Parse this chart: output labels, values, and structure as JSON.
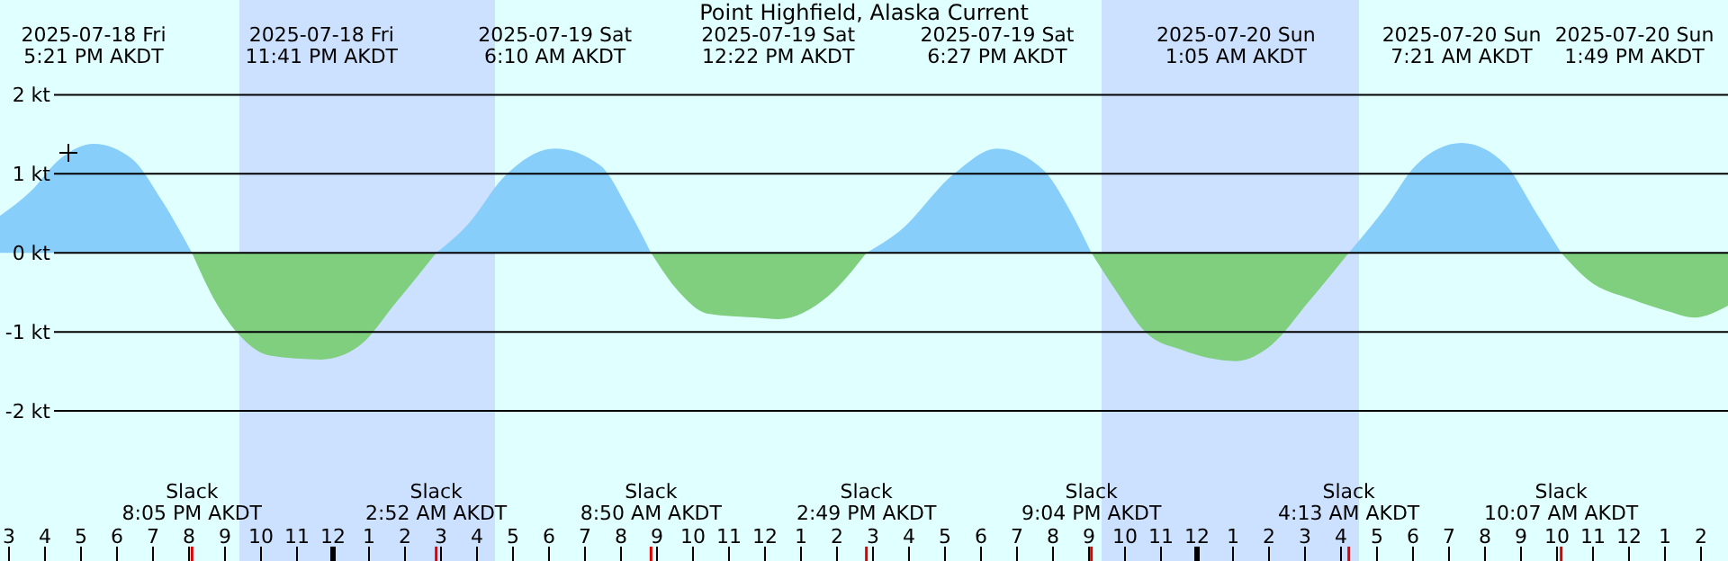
{
  "chart_data": {
    "type": "area",
    "title": "Point Highfield, Alaska Current",
    "x": [
      "2025-07-18T14:45",
      "2025-07-18T15:35",
      "2025-07-18T16:25",
      "2025-07-18T17:21",
      "2025-07-18T18:25",
      "2025-07-18T19:15",
      "2025-07-18T20:05",
      "2025-07-18T20:45",
      "2025-07-18T21:25",
      "2025-07-18T22:15",
      "2025-07-18T23:41",
      "2025-07-19T00:45",
      "2025-07-19T01:45",
      "2025-07-19T02:52",
      "2025-07-19T03:45",
      "2025-07-19T04:45",
      "2025-07-19T06:10",
      "2025-07-19T07:25",
      "2025-07-19T08:15",
      "2025-07-19T08:50",
      "2025-07-19T09:35",
      "2025-07-19T10:25",
      "2025-07-19T11:45",
      "2025-07-19T12:22",
      "2025-07-19T13:45",
      "2025-07-19T14:49",
      "2025-07-19T15:45",
      "2025-07-19T17:15",
      "2025-07-19T18:27",
      "2025-07-19T19:45",
      "2025-07-19T20:25",
      "2025-07-19T21:04",
      "2025-07-19T21:45",
      "2025-07-19T22:35",
      "2025-07-19T23:35",
      "2025-07-20T01:05",
      "2025-07-20T02:05",
      "2025-07-20T03:05",
      "2025-07-20T04:13",
      "2025-07-20T05:15",
      "2025-07-20T06:05",
      "2025-07-20T07:21",
      "2025-07-20T08:35",
      "2025-07-20T09:25",
      "2025-07-20T10:07",
      "2025-07-20T10:55",
      "2025-07-20T12:05",
      "2025-07-20T13:05",
      "2025-07-20T13:49",
      "2025-07-20T14:45"
    ],
    "series": [
      {
        "color": "#87cefa",
        "values": [
          0.47,
          0.77,
          1.19,
          1.38,
          1.19,
          0.66,
          0,
          null,
          null,
          null,
          null,
          null,
          null,
          0,
          0.36,
          0.96,
          1.32,
          1.11,
          0.51,
          0,
          null,
          null,
          null,
          null,
          null,
          0,
          0.28,
          1.0,
          1.32,
          1.04,
          0.58,
          0,
          null,
          null,
          null,
          null,
          null,
          null,
          0,
          0.58,
          1.11,
          1.39,
          1.11,
          0.51,
          0,
          null,
          null,
          null,
          null,
          null
        ]
      },
      {
        "color": "#7fcf7f",
        "values": [
          null,
          null,
          null,
          null,
          null,
          null,
          0,
          -0.63,
          -1.05,
          -1.3,
          -1.35,
          -1.17,
          -0.63,
          0,
          null,
          null,
          null,
          null,
          null,
          0,
          -0.48,
          -0.77,
          -0.82,
          -0.84,
          -0.55,
          0,
          null,
          null,
          null,
          null,
          null,
          0,
          -0.48,
          -1.01,
          -1.23,
          -1.37,
          -1.16,
          -0.63,
          0,
          null,
          null,
          null,
          null,
          null,
          0,
          -0.36,
          -0.59,
          -0.74,
          -0.82,
          -0.67
        ]
      }
    ],
    "xlim": [
      "2025-07-18T14:45",
      "2025-07-20T14:45"
    ],
    "xticks": [
      {
        "value": "2025-07-18T15:00",
        "label": "3"
      },
      {
        "value": "2025-07-18T16:00",
        "label": "4"
      },
      {
        "value": "2025-07-18T17:00",
        "label": "5"
      },
      {
        "value": "2025-07-18T18:00",
        "label": "6"
      },
      {
        "value": "2025-07-18T19:00",
        "label": "7"
      },
      {
        "value": "2025-07-18T20:00",
        "label": "8"
      },
      {
        "value": "2025-07-18T21:00",
        "label": "9"
      },
      {
        "value": "2025-07-18T22:00",
        "label": "10"
      },
      {
        "value": "2025-07-18T23:00",
        "label": "11"
      },
      {
        "value": "2025-07-19T00:00",
        "label": "12"
      },
      {
        "value": "2025-07-19T01:00",
        "label": "1"
      },
      {
        "value": "2025-07-19T02:00",
        "label": "2"
      },
      {
        "value": "2025-07-19T03:00",
        "label": "3"
      },
      {
        "value": "2025-07-19T04:00",
        "label": "4"
      },
      {
        "value": "2025-07-19T05:00",
        "label": "5"
      },
      {
        "value": "2025-07-19T06:00",
        "label": "6"
      },
      {
        "value": "2025-07-19T07:00",
        "label": "7"
      },
      {
        "value": "2025-07-19T08:00",
        "label": "8"
      },
      {
        "value": "2025-07-19T09:00",
        "label": "9"
      },
      {
        "value": "2025-07-19T10:00",
        "label": "10"
      },
      {
        "value": "2025-07-19T11:00",
        "label": "11"
      },
      {
        "value": "2025-07-19T12:00",
        "label": "12"
      },
      {
        "value": "2025-07-19T13:00",
        "label": "1"
      },
      {
        "value": "2025-07-19T14:00",
        "label": "2"
      },
      {
        "value": "2025-07-19T15:00",
        "label": "3"
      },
      {
        "value": "2025-07-19T16:00",
        "label": "4"
      },
      {
        "value": "2025-07-19T17:00",
        "label": "5"
      },
      {
        "value": "2025-07-19T18:00",
        "label": "6"
      },
      {
        "value": "2025-07-19T19:00",
        "label": "7"
      },
      {
        "value": "2025-07-19T20:00",
        "label": "8"
      },
      {
        "value": "2025-07-19T21:00",
        "label": "9"
      },
      {
        "value": "2025-07-19T22:00",
        "label": "10"
      },
      {
        "value": "2025-07-19T23:00",
        "label": "11"
      },
      {
        "value": "2025-07-20T00:00",
        "label": "12"
      },
      {
        "value": "2025-07-20T01:00",
        "label": "1"
      },
      {
        "value": "2025-07-20T02:00",
        "label": "2"
      },
      {
        "value": "2025-07-20T03:00",
        "label": "3"
      },
      {
        "value": "2025-07-20T04:00",
        "label": "4"
      },
      {
        "value": "2025-07-20T05:00",
        "label": "5"
      },
      {
        "value": "2025-07-20T06:00",
        "label": "6"
      },
      {
        "value": "2025-07-20T07:00",
        "label": "7"
      },
      {
        "value": "2025-07-20T08:00",
        "label": "8"
      },
      {
        "value": "2025-07-20T09:00",
        "label": "9"
      },
      {
        "value": "2025-07-20T10:00",
        "label": "10"
      },
      {
        "value": "2025-07-20T11:00",
        "label": "11"
      },
      {
        "value": "2025-07-20T12:00",
        "label": "12"
      },
      {
        "value": "2025-07-20T13:00",
        "label": "1"
      },
      {
        "value": "2025-07-20T14:00",
        "label": "2"
      }
    ],
    "ylim": [
      -3.9,
      3.2
    ],
    "yticks": [
      {
        "value": -2,
        "label": "-2 kt"
      },
      {
        "value": -1,
        "label": "-1 kt"
      },
      {
        "value": 0,
        "label": "0 kt"
      },
      {
        "value": 1,
        "label": "1 kt"
      },
      {
        "value": 2,
        "label": "2 kt"
      }
    ],
    "grid": "y",
    "bands": [
      {
        "axis": "x",
        "from": "2025-07-18T21:24",
        "to": "2025-07-19T04:30",
        "color": "#cce0ff"
      },
      {
        "axis": "x",
        "from": "2025-07-19T21:21",
        "to": "2025-07-20T04:30",
        "color": "#cce0ff"
      }
    ],
    "annotations": [
      "2025-07-18 Fri\n5:21 PM AKDT",
      "2025-07-18 Fri\n11:41 PM AKDT",
      "2025-07-19 Sat\n6:10 AM AKDT",
      "2025-07-19 Sat\n12:22 PM AKDT",
      "2025-07-19 Sat\n6:27 PM AKDT",
      "2025-07-20 Sun\n1:05 AM AKDT",
      "2025-07-20 Sun\n7:21 AM AKDT",
      "2025-07-20 Sun\n1:49 PM AKDT",
      "Slack\n8:05 PM AKDT",
      "Slack\n2:52 AM AKDT",
      "Slack\n8:50 AM AKDT",
      "Slack\n2:49 PM AKDT",
      "Slack\n9:04 PM AKDT",
      "Slack\n4:13 AM AKDT",
      "Slack\n10:07 AM AKDT"
    ]
  }
}
